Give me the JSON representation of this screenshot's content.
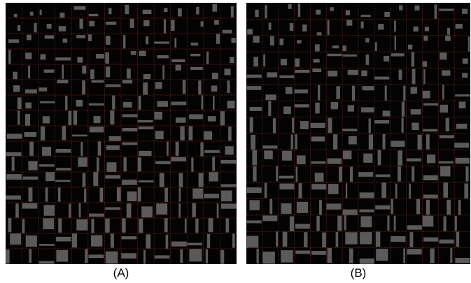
{
  "panels": [
    {
      "id": "a",
      "caption": "(A)",
      "rows": 17,
      "cols": 14
    },
    {
      "id": "b",
      "caption": "(B)",
      "rows": 16,
      "cols": 14
    }
  ],
  "colors": {
    "background": "#030303",
    "box": "#5a5a5a",
    "grid": "#7a1c1c",
    "caption": "#000000"
  }
}
